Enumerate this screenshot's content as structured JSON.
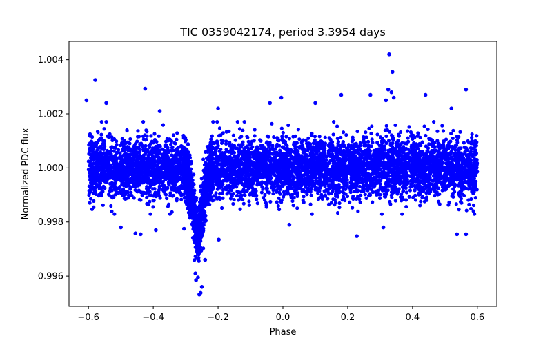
{
  "chart_data": {
    "type": "scatter",
    "title": "TIC 0359042174, period 3.3954 days",
    "xlabel": "Phase",
    "ylabel": "Normalized PDC flux",
    "xlim": [
      -0.66,
      0.66
    ],
    "ylim": [
      0.99488,
      1.00468
    ],
    "x_ticks": [
      -0.6,
      -0.4,
      -0.2,
      0.0,
      0.2,
      0.4,
      0.6
    ],
    "x_tick_labels": [
      "−0.6",
      "−0.4",
      "−0.2",
      "0.0",
      "0.2",
      "0.4",
      "0.6"
    ],
    "y_ticks": [
      0.996,
      0.998,
      1.0,
      1.002,
      1.004
    ],
    "y_tick_labels": [
      "0.996",
      "0.998",
      "1.000",
      "1.002",
      "1.004"
    ],
    "grid": false,
    "legend": "none",
    "marker_color": "#0000ff",
    "series": [
      {
        "x_range": [
          -0.6,
          0.6
        ],
        "baseline": 1.0,
        "scatter_sigma": 0.00055,
        "transit": {
          "center_phase": -0.262,
          "depth": 0.0027,
          "half_width": 0.045
        },
        "outliers": [
          [
            -0.579,
            1.00325
          ],
          [
            -0.425,
            1.00293
          ],
          [
            -0.606,
            1.0025
          ],
          [
            -0.545,
            1.0024
          ],
          [
            0.328,
            1.0042
          ],
          [
            0.338,
            1.00355
          ],
          [
            0.325,
            1.0029
          ],
          [
            0.335,
            1.0028
          ],
          [
            0.342,
            1.0026
          ],
          [
            0.318,
            1.0025
          ],
          [
            0.565,
            1.0029
          ],
          [
            0.18,
            1.0027
          ],
          [
            0.27,
            1.0027
          ],
          [
            -0.005,
            1.0026
          ],
          [
            -0.04,
            1.0024
          ],
          [
            0.44,
            1.0027
          ],
          [
            -0.2,
            1.0022
          ],
          [
            0.1,
            1.0024
          ],
          [
            -0.38,
            1.0021
          ],
          [
            0.52,
            1.0022
          ],
          [
            -0.439,
            0.99755
          ],
          [
            -0.455,
            0.99758
          ],
          [
            -0.392,
            0.9977
          ],
          [
            0.537,
            0.99755
          ],
          [
            0.565,
            0.99755
          ],
          [
            0.228,
            0.99748
          ],
          [
            -0.198,
            0.99735
          ],
          [
            0.02,
            0.9979
          ],
          [
            -0.5,
            0.9978
          ],
          [
            0.31,
            0.9978
          ],
          [
            -0.305,
            0.99775
          ],
          [
            -0.24,
            0.9966
          ],
          [
            -0.258,
            0.99532
          ],
          [
            -0.254,
            0.99538
          ],
          [
            -0.25,
            0.9956
          ],
          [
            -0.268,
            0.99585
          ],
          [
            -0.27,
            0.9961
          ],
          [
            -0.262,
            0.99595
          ]
        ]
      }
    ]
  }
}
